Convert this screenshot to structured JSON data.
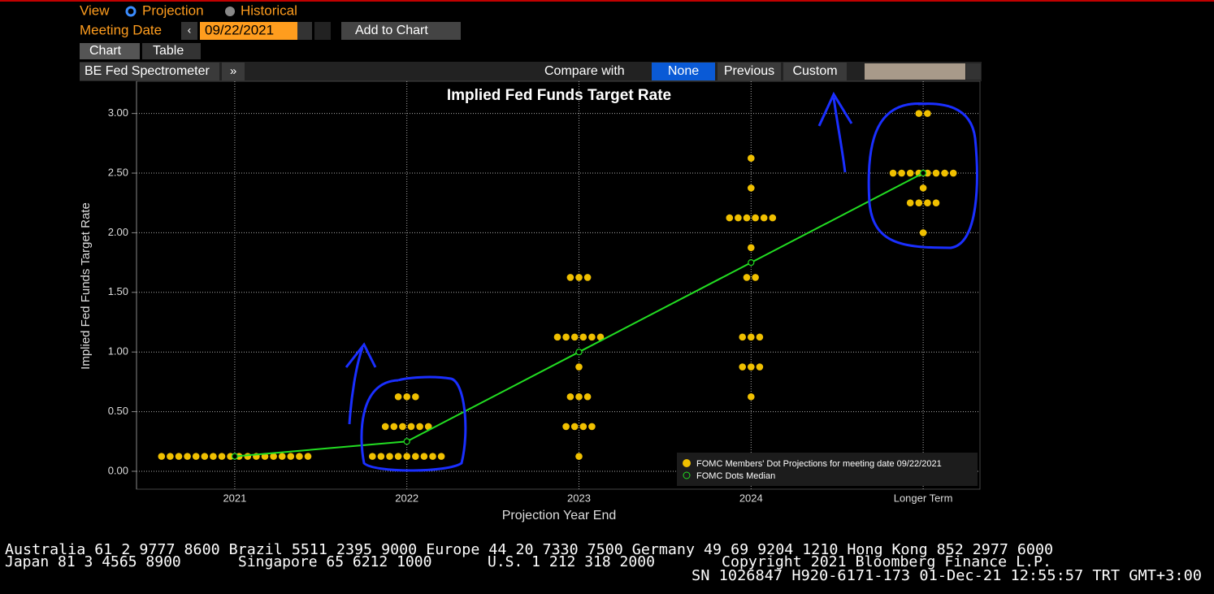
{
  "toolbar": {
    "view_label": "View",
    "view_options": [
      "Projection",
      "Historical"
    ],
    "meeting_date_label": "Meeting Date",
    "meeting_date": "09/22/2021",
    "add_to_chart": "Add to Chart",
    "tabs": [
      "Chart",
      "Table"
    ],
    "function_name": "BE Fed Spectrometer",
    "compare_label": "Compare with",
    "compare_options": [
      "None",
      "Previous",
      "Custom"
    ]
  },
  "chart_data": {
    "type": "dot",
    "title": "Implied Fed Funds Target Rate",
    "x_label": "Projection Year End",
    "y_label": "Implied Fed Funds Target Rate",
    "categories": [
      "2021",
      "2022",
      "2023",
      "2024",
      "Longer Term"
    ],
    "series": [
      {
        "name": "FOMC Members' Dot Projections for meeting date 09/22/2021",
        "color": "#f0c000",
        "values": [
          [
            0.125,
            0.125,
            0.125,
            0.125,
            0.125,
            0.125,
            0.125,
            0.125,
            0.125,
            0.125,
            0.125,
            0.125,
            0.125,
            0.125,
            0.125,
            0.125,
            0.125,
            0.125
          ],
          [
            0.625,
            0.625,
            0.625,
            0.375,
            0.375,
            0.375,
            0.375,
            0.375,
            0.375,
            0.125,
            0.125,
            0.125,
            0.125,
            0.125,
            0.125,
            0.125,
            0.125,
            0.125
          ],
          [
            1.625,
            1.625,
            1.625,
            1.125,
            1.125,
            1.125,
            1.125,
            1.125,
            1.125,
            0.875,
            0.625,
            0.625,
            0.625,
            0.375,
            0.375,
            0.375,
            0.375,
            0.125
          ],
          [
            2.625,
            2.375,
            2.125,
            2.125,
            2.125,
            2.125,
            2.125,
            2.125,
            1.875,
            1.625,
            1.625,
            1.125,
            1.125,
            1.125,
            0.875,
            0.875,
            0.875,
            0.625
          ],
          [
            3.0,
            3.0,
            2.5,
            2.5,
            2.5,
            2.5,
            2.5,
            2.5,
            2.5,
            2.5,
            2.375,
            2.25,
            2.25,
            2.25,
            2.25,
            2.0
          ]
        ]
      },
      {
        "name": "FOMC Dots Median",
        "color": "#22dd22",
        "values": [
          0.125,
          0.25,
          1.0,
          1.75,
          2.5
        ]
      }
    ],
    "ylim": [
      -0.15,
      3.27
    ],
    "yticks": [
      {
        "value": 0,
        "label": "0.00"
      },
      {
        "value": 0.5,
        "label": "0.50"
      },
      {
        "value": 1,
        "label": "1.00"
      },
      {
        "value": 1.5,
        "label": "1.50"
      },
      {
        "value": 2,
        "label": "2.00"
      },
      {
        "value": 2.5,
        "label": "2.50"
      },
      {
        "value": 3,
        "label": "3.00"
      }
    ],
    "grid": true
  },
  "footer": [
    "Australia 61 2 9777 8600 Brazil 5511 2395 9000 Europe 44 20 7330 7500 Germany 49 69 9204 1210 Hong Kong 852 2977 6000",
    "Japan 81 3 4565 8900",
    "Singapore 65 6212 1000",
    "U.S. 1 212 318 2000",
    "Copyright 2021 Bloomberg Finance L.P.",
    "SN 1026847 H920-6171-173 01-Dec-21 12:55:57 TRT  GMT+3:00"
  ]
}
